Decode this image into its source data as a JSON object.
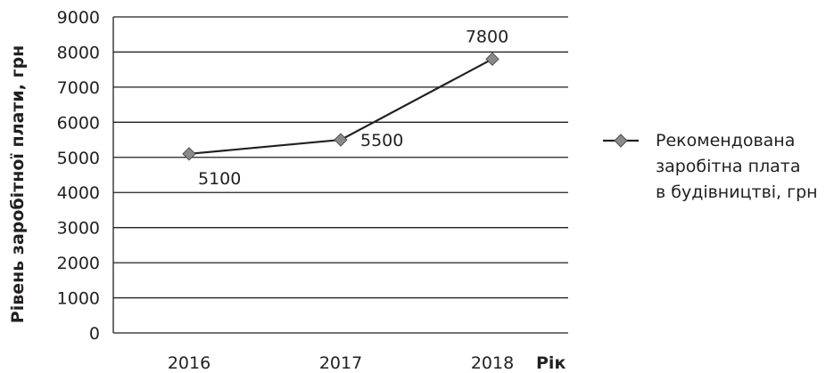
{
  "chart_data": {
    "type": "line",
    "categories": [
      "2016",
      "2017",
      "2018"
    ],
    "series": [
      {
        "name_lines": [
          "Рекомендована",
          "заробітна плата",
          "в будівництві, грн"
        ],
        "values": [
          5100,
          5500,
          7800
        ],
        "data_labels": [
          "5100",
          "5500",
          "7800"
        ]
      }
    ],
    "xlabel": "Рік",
    "ylabel": "Рівень заробітної плати, грн",
    "ylim": [
      0,
      9000
    ],
    "yticks": [
      0,
      1000,
      2000,
      3000,
      4000,
      5000,
      6000,
      7000,
      8000,
      9000
    ],
    "ytick_labels": [
      "0",
      "1000",
      "2000",
      "3000",
      "4000",
      "5000",
      "6000",
      "7000",
      "8000",
      "9000"
    ],
    "grid": true,
    "legend_position": "right",
    "colors": {
      "line": "#231f20",
      "marker_fill": "#8a8a8a",
      "marker_stroke": "#4d4d4d",
      "grid": "#231f20",
      "text": "#231f20"
    }
  }
}
